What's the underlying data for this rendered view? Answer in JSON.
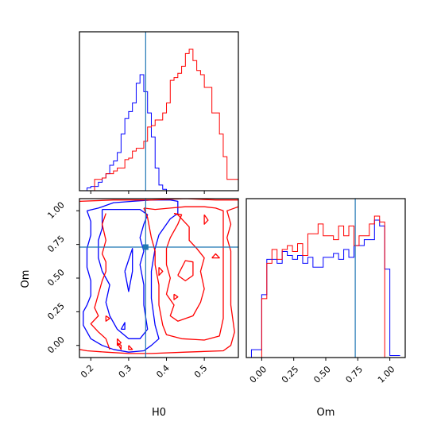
{
  "chart_data": [
    {
      "type": "step-histogram",
      "panel": "H0 marginal",
      "xlim": [
        0.17,
        0.59
      ],
      "x_ticks": [
        "0.2",
        "0.3",
        "0.4",
        "0.5"
      ],
      "truth_x": 0.345,
      "bin_edges": [
        0.17,
        0.18,
        0.19,
        0.2,
        0.21,
        0.22,
        0.23,
        0.24,
        0.25,
        0.26,
        0.27,
        0.28,
        0.29,
        0.3,
        0.31,
        0.32,
        0.33,
        0.34,
        0.35,
        0.36,
        0.37,
        0.38,
        0.39,
        0.4,
        0.41,
        0.42,
        0.43,
        0.44,
        0.45,
        0.46,
        0.47,
        0.48,
        0.49,
        0.5,
        0.51,
        0.52,
        0.53,
        0.54,
        0.55,
        0.56,
        0.57,
        0.58,
        0.59
      ],
      "series": [
        {
          "color": "#0000ff",
          "values": [
            0,
            0,
            0.02,
            0.03,
            0.03,
            0.06,
            0.09,
            0.12,
            0.18,
            0.21,
            0.27,
            0.4,
            0.51,
            0.56,
            0.62,
            0.76,
            0.82,
            0.7,
            0.55,
            0.38,
            0.16,
            0.04,
            0.01,
            0,
            0,
            0,
            0,
            0,
            0,
            0,
            0,
            0,
            0,
            0,
            0,
            0,
            0,
            0,
            0,
            0,
            0,
            0
          ]
        },
        {
          "color": "#ff0000",
          "values": [
            0,
            0,
            0,
            0,
            0.08,
            0.08,
            0.09,
            0.12,
            0.12,
            0.14,
            0.16,
            0.16,
            0.22,
            0.23,
            0.28,
            0.3,
            0.3,
            0.35,
            0.45,
            0.46,
            0.5,
            0.5,
            0.55,
            0.62,
            0.78,
            0.8,
            0.83,
            0.88,
            0.97,
            1.0,
            0.92,
            0.85,
            0.82,
            0.73,
            0.73,
            0.55,
            0.55,
            0.4,
            0.24,
            0.08,
            0.08,
            0.08
          ]
        }
      ]
    },
    {
      "type": "contour",
      "panel": "Om vs H0 joint",
      "xlabel": "H0",
      "ylabel": "Om",
      "xlim": [
        0.17,
        0.59
      ],
      "ylim": [
        -0.09,
        1.09
      ],
      "x_ticks": [
        "0.2",
        "0.3",
        "0.4",
        "0.5"
      ],
      "y_ticks": [
        "0.00",
        "0.25",
        "0.50",
        "0.75",
        "1.00"
      ],
      "truth_x": 0.345,
      "truth_y": 0.73,
      "series": [
        {
          "color": "#0000ff",
          "contours": [
            [
              [
                0.19,
                1.0
              ],
              [
                0.22,
                1.02
              ],
              [
                0.26,
                1.06
              ],
              [
                0.31,
                1.07
              ],
              [
                0.36,
                1.08
              ],
              [
                0.41,
                1.08
              ],
              [
                0.43,
                1.07
              ],
              [
                0.43,
                0.98
              ],
              [
                0.41,
                0.94
              ],
              [
                0.38,
                0.82
              ],
              [
                0.37,
                0.72
              ],
              [
                0.36,
                0.55
              ],
              [
                0.36,
                0.35
              ],
              [
                0.37,
                0.15
              ],
              [
                0.38,
                0.05
              ],
              [
                0.36,
                0.0
              ],
              [
                0.34,
                -0.04
              ],
              [
                0.3,
                -0.05
              ],
              [
                0.26,
                -0.03
              ],
              [
                0.23,
                0.0
              ],
              [
                0.2,
                0.05
              ],
              [
                0.18,
                0.15
              ],
              [
                0.18,
                0.25
              ],
              [
                0.19,
                0.3
              ],
              [
                0.2,
                0.37
              ],
              [
                0.2,
                0.48
              ],
              [
                0.19,
                0.58
              ],
              [
                0.19,
                0.72
              ],
              [
                0.2,
                0.82
              ],
              [
                0.2,
                0.92
              ],
              [
                0.19,
                1.0
              ]
            ],
            [
              [
                0.23,
                1.01
              ],
              [
                0.29,
                1.01
              ],
              [
                0.33,
                1.01
              ],
              [
                0.35,
                0.97
              ],
              [
                0.34,
                0.9
              ],
              [
                0.33,
                0.8
              ],
              [
                0.34,
                0.7
              ],
              [
                0.33,
                0.6
              ],
              [
                0.34,
                0.45
              ],
              [
                0.34,
                0.3
              ],
              [
                0.35,
                0.12
              ],
              [
                0.33,
                0.05
              ],
              [
                0.3,
                0.05
              ],
              [
                0.27,
                0.12
              ],
              [
                0.25,
                0.22
              ],
              [
                0.24,
                0.32
              ],
              [
                0.25,
                0.45
              ],
              [
                0.23,
                0.55
              ],
              [
                0.22,
                0.65
              ],
              [
                0.22,
                0.78
              ],
              [
                0.23,
                0.87
              ],
              [
                0.23,
                1.01
              ]
            ],
            [
              [
                0.29,
                0.55
              ],
              [
                0.31,
                0.72
              ],
              [
                0.31,
                0.55
              ],
              [
                0.3,
                0.4
              ],
              [
                0.29,
                0.55
              ]
            ],
            [
              [
                0.28,
                0.12
              ],
              [
                0.29,
                0.17
              ],
              [
                0.29,
                0.12
              ],
              [
                0.28,
                0.12
              ]
            ]
          ]
        },
        {
          "color": "#ff0000",
          "contours": [
            [
              [
                0.17,
                1.07
              ],
              [
                0.26,
                1.08
              ],
              [
                0.36,
                1.08
              ],
              [
                0.45,
                1.09
              ],
              [
                0.53,
                1.08
              ],
              [
                0.59,
                1.08
              ],
              [
                0.59,
                1.03
              ],
              [
                0.56,
                1.0
              ],
              [
                0.57,
                0.9
              ],
              [
                0.56,
                0.8
              ],
              [
                0.57,
                0.7
              ],
              [
                0.57,
                0.5
              ],
              [
                0.57,
                0.3
              ],
              [
                0.58,
                0.1
              ],
              [
                0.57,
                0.0
              ],
              [
                0.55,
                -0.04
              ],
              [
                0.45,
                -0.05
              ],
              [
                0.36,
                -0.06
              ],
              [
                0.3,
                -0.06
              ],
              [
                0.24,
                -0.05
              ],
              [
                0.19,
                -0.04
              ],
              [
                0.17,
                -0.03
              ]
            ],
            [
              [
                0.25,
                -0.03
              ],
              [
                0.24,
                0.05
              ],
              [
                0.22,
                0.1
              ],
              [
                0.2,
                0.16
              ],
              [
                0.22,
                0.22
              ],
              [
                0.21,
                0.28
              ],
              [
                0.22,
                0.38
              ],
              [
                0.23,
                0.48
              ],
              [
                0.24,
                0.55
              ],
              [
                0.24,
                0.62
              ],
              [
                0.23,
                0.68
              ],
              [
                0.24,
                0.78
              ],
              [
                0.23,
                0.9
              ],
              [
                0.24,
                0.98
              ]
            ],
            [
              [
                0.27,
                0.02
              ],
              [
                0.28,
                0.0
              ],
              [
                0.28,
                -0.03
              ],
              [
                0.27,
                0.02
              ]
            ],
            [
              [
                0.3,
                0.0
              ],
              [
                0.31,
                -0.03
              ],
              [
                0.3,
                -0.03
              ],
              [
                0.3,
                0.0
              ]
            ],
            [
              [
                0.34,
                1.02
              ],
              [
                0.37,
                1.01
              ],
              [
                0.41,
                1.02
              ],
              [
                0.45,
                1.03
              ],
              [
                0.5,
                1.03
              ],
              [
                0.53,
                1.02
              ],
              [
                0.55,
                1.0
              ],
              [
                0.55,
                0.9
              ],
              [
                0.55,
                0.78
              ],
              [
                0.55,
                0.6
              ],
              [
                0.55,
                0.4
              ],
              [
                0.55,
                0.2
              ],
              [
                0.54,
                0.07
              ],
              [
                0.5,
                0.04
              ],
              [
                0.44,
                0.05
              ],
              [
                0.4,
                0.08
              ],
              [
                0.39,
                0.15
              ],
              [
                0.38,
                0.3
              ],
              [
                0.38,
                0.45
              ],
              [
                0.37,
                0.6
              ],
              [
                0.37,
                0.7
              ],
              [
                0.36,
                0.8
              ],
              [
                0.35,
                0.95
              ],
              [
                0.34,
                1.02
              ]
            ],
            [
              [
                0.42,
                0.98
              ],
              [
                0.44,
                0.97
              ],
              [
                0.43,
                0.9
              ],
              [
                0.41,
                0.8
              ],
              [
                0.4,
                0.72
              ],
              [
                0.4,
                0.6
              ],
              [
                0.41,
                0.5
              ],
              [
                0.4,
                0.38
              ],
              [
                0.42,
                0.3
              ],
              [
                0.41,
                0.22
              ],
              [
                0.43,
                0.18
              ],
              [
                0.47,
                0.22
              ],
              [
                0.49,
                0.32
              ],
              [
                0.5,
                0.42
              ],
              [
                0.49,
                0.55
              ],
              [
                0.5,
                0.65
              ],
              [
                0.48,
                0.72
              ],
              [
                0.46,
                0.78
              ],
              [
                0.46,
                0.88
              ],
              [
                0.43,
                0.97
              ],
              [
                0.42,
                0.98
              ]
            ],
            [
              [
                0.43,
                0.52
              ],
              [
                0.45,
                0.63
              ],
              [
                0.47,
                0.62
              ],
              [
                0.47,
                0.52
              ],
              [
                0.45,
                0.48
              ],
              [
                0.43,
                0.52
              ]
            ],
            [
              [
                0.52,
                0.65
              ],
              [
                0.53,
                0.68
              ],
              [
                0.54,
                0.65
              ],
              [
                0.52,
                0.65
              ]
            ],
            [
              [
                0.5,
                0.97
              ],
              [
                0.51,
                0.93
              ],
              [
                0.5,
                0.9
              ],
              [
                0.5,
                0.97
              ]
            ],
            [
              [
                0.38,
                0.58
              ],
              [
                0.39,
                0.55
              ],
              [
                0.38,
                0.52
              ],
              [
                0.38,
                0.58
              ]
            ],
            [
              [
                0.42,
                0.38
              ],
              [
                0.43,
                0.36
              ],
              [
                0.42,
                0.34
              ],
              [
                0.42,
                0.38
              ]
            ],
            [
              [
                0.24,
                0.22
              ],
              [
                0.25,
                0.2
              ],
              [
                0.24,
                0.18
              ],
              [
                0.24,
                0.22
              ]
            ],
            [
              [
                0.27,
                0.05
              ],
              [
                0.28,
                0.02
              ],
              [
                0.27,
                0.0
              ],
              [
                0.27,
                0.05
              ]
            ]
          ]
        }
      ]
    },
    {
      "type": "step-histogram",
      "panel": "Om marginal",
      "xlabel": "Om",
      "xlim": [
        -0.12,
        1.12
      ],
      "x_ticks": [
        "0.00",
        "0.25",
        "0.50",
        "0.75",
        "1.00"
      ],
      "truth_x": 0.73,
      "bin_edges": [
        -0.08,
        -0.04,
        0.0,
        0.04,
        0.08,
        0.12,
        0.16,
        0.2,
        0.24,
        0.28,
        0.32,
        0.36,
        0.4,
        0.44,
        0.48,
        0.52,
        0.56,
        0.6,
        0.64,
        0.68,
        0.72,
        0.76,
        0.8,
        0.84,
        0.88,
        0.92,
        0.96,
        1.0,
        1.04,
        1.08
      ],
      "series": [
        {
          "color": "#0000ff",
          "values": [
            0.04,
            0.04,
            0.32,
            0.5,
            0.5,
            0.48,
            0.54,
            0.52,
            0.5,
            0.52,
            0.48,
            0.51,
            0.46,
            0.46,
            0.51,
            0.51,
            0.53,
            0.5,
            0.55,
            0.51,
            0.57,
            0.57,
            0.6,
            0.6,
            0.7,
            0.67,
            0.45,
            0.01,
            0.01
          ]
        },
        {
          "color": "#ff0000",
          "values": [
            0,
            0,
            0.3,
            0.48,
            0.55,
            0.5,
            0.55,
            0.57,
            0.54,
            0.58,
            0.52,
            0.63,
            0.63,
            0.68,
            0.62,
            0.62,
            0.6,
            0.67,
            0.62,
            0.67,
            0.57,
            0.62,
            0.62,
            0.68,
            0.72,
            0.69,
            0.0,
            0.0,
            0.0
          ]
        }
      ]
    }
  ]
}
